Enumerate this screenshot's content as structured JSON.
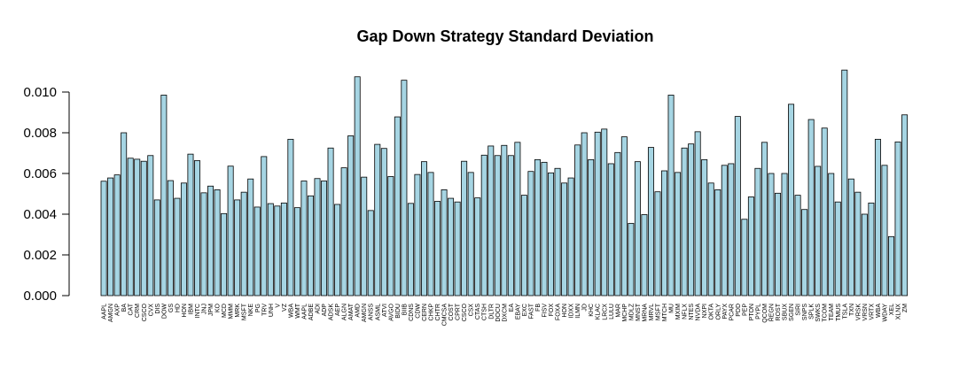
{
  "chart_data": {
    "type": "bar",
    "title": "Gap Down Strategy Standard Deviation",
    "xlabel": "",
    "ylabel": "",
    "ylim": [
      0,
      0.011
    ],
    "yticks": [
      "0.000",
      "0.002",
      "0.004",
      "0.006",
      "0.008",
      "0.010"
    ],
    "ytick_values": [
      0,
      0.002,
      0.004,
      0.006,
      0.008,
      0.01
    ],
    "grid": false,
    "bar_color": "#a6d5e3",
    "categories": [
      "AAPL",
      "AMGN",
      "AXP",
      "BA",
      "CAT",
      "CRM",
      "CSCO",
      "CVX",
      "DIS",
      "DOW",
      "GS",
      "HD",
      "HON",
      "IBM",
      "INTC",
      "JNJ",
      "JPM",
      "KO",
      "MCD",
      "MMM",
      "MRK",
      "MSFT",
      "NKE",
      "PG",
      "TRV",
      "UNH",
      "V",
      "VZ",
      "WBA",
      "WMT",
      "AAPL",
      "ADBE",
      "ADI",
      "ADP",
      "ADSK",
      "AEP",
      "ALGN",
      "AMAT",
      "AMD",
      "AMGN",
      "ANSS",
      "ASML",
      "ATVI",
      "AVGO",
      "BIDU",
      "BIIB",
      "CDNS",
      "CDW",
      "CERN",
      "CHKP",
      "CHTR",
      "CMCSA",
      "COST",
      "CPRT",
      "CSCO",
      "CSX",
      "CTAS",
      "CTSH",
      "DLTR",
      "DOCU",
      "DXCM",
      "EA",
      "EBAY",
      "EXC",
      "FAST",
      "FB",
      "FISV",
      "FOX",
      "FOXA",
      "HON",
      "IDXX",
      "ILMN",
      "JD",
      "KHC",
      "KLAC",
      "LRCX",
      "LULU",
      "MAR",
      "MCHP",
      "MDLZ",
      "MNST",
      "MRNA",
      "MRVL",
      "MSFT",
      "MTCH",
      "MU",
      "MXIM",
      "NFLX",
      "NTES",
      "NVDA",
      "NXPI",
      "OKTA",
      "ORLY",
      "PAYX",
      "PCAR",
      "PDD",
      "PEP",
      "PTON",
      "PYPL",
      "QCOM",
      "REGN",
      "ROST",
      "SBUX",
      "SGEN",
      "SIRI",
      "SNPS",
      "SPLK",
      "SWKS",
      "TCOM",
      "TEAM",
      "TMUS",
      "TSLA",
      "TXN",
      "VRSK",
      "VRSN",
      "VRTX",
      "WBA",
      "WDAY",
      "XEL",
      "XLNX",
      "ZM"
    ],
    "values": [
      0.00562,
      0.00578,
      0.00593,
      0.008,
      0.00675,
      0.0067,
      0.0066,
      0.00688,
      0.0047,
      0.00985,
      0.00565,
      0.00478,
      0.00553,
      0.00695,
      0.00663,
      0.00505,
      0.00538,
      0.0052,
      0.00403,
      0.00636,
      0.0047,
      0.00508,
      0.00573,
      0.00435,
      0.00683,
      0.00452,
      0.0044,
      0.00455,
      0.00768,
      0.00432,
      0.00563,
      0.0049,
      0.00575,
      0.00563,
      0.00725,
      0.00448,
      0.00628,
      0.00785,
      0.01075,
      0.00582,
      0.00418,
      0.00743,
      0.00723,
      0.00585,
      0.00878,
      0.01058,
      0.00453,
      0.00595,
      0.00658,
      0.00605,
      0.00463,
      0.0052,
      0.00478,
      0.0046,
      0.0066,
      0.00605,
      0.0048,
      0.0069,
      0.00735,
      0.00688,
      0.00738,
      0.00688,
      0.00753,
      0.00493,
      0.0061,
      0.00668,
      0.00655,
      0.00603,
      0.00625,
      0.00553,
      0.00578,
      0.0074,
      0.008,
      0.00668,
      0.00803,
      0.00818,
      0.00648,
      0.00703,
      0.0078,
      0.00355,
      0.00658,
      0.00398,
      0.00728,
      0.0051,
      0.00613,
      0.00985,
      0.00605,
      0.00725,
      0.00745,
      0.00805,
      0.00668,
      0.00553,
      0.0052,
      0.0064,
      0.00648,
      0.0088,
      0.00375,
      0.00485,
      0.00625,
      0.00753,
      0.006,
      0.00503,
      0.006,
      0.0094,
      0.00493,
      0.00423,
      0.00865,
      0.00635,
      0.00823,
      0.006,
      0.0046,
      0.01108,
      0.00573,
      0.00508,
      0.004,
      0.00455,
      0.00768,
      0.0064,
      0.0029,
      0.00755,
      0.00888
    ]
  }
}
